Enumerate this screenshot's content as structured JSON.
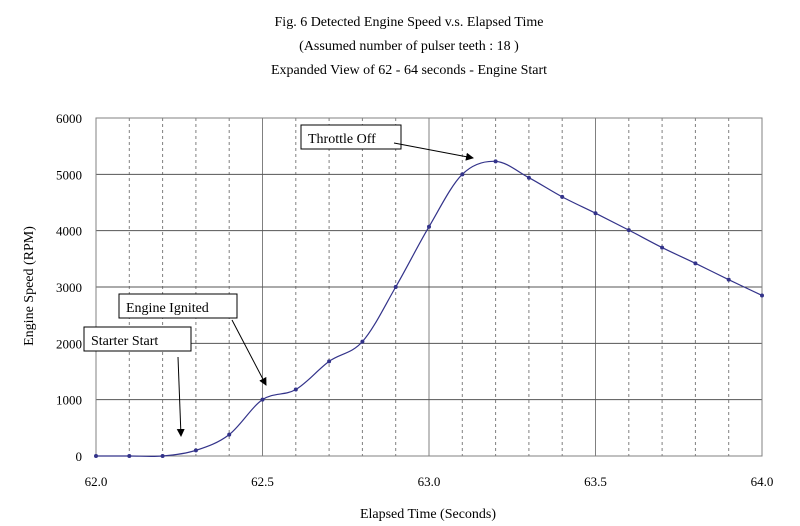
{
  "chart_data": {
    "type": "line",
    "title_lines": [
      "Fig. 6  Detected Engine Speed  v.s. Elapsed Time",
      "(Assumed number of pulser teeth : 18 )",
      "Expanded View of 62 - 64 seconds - Engine Start"
    ],
    "xlabel": "Elapsed Time (Seconds)",
    "ylabel": "Engine Speed (RPM)",
    "xlim": [
      62.0,
      64.0
    ],
    "ylim": [
      0,
      6000
    ],
    "x_ticks": [
      "62.0",
      "62.5",
      "63.0",
      "63.5",
      "64.0"
    ],
    "y_ticks": [
      "0",
      "1000",
      "2000",
      "3000",
      "4000",
      "5000",
      "6000"
    ],
    "grid": {
      "horizontal": true,
      "vertical_minor": true
    },
    "series": [
      {
        "x": [
          62.0,
          62.1,
          62.2,
          62.3,
          62.4,
          62.5,
          62.6,
          62.7,
          62.8,
          62.9,
          63.0,
          63.1,
          63.2,
          63.3,
          63.4,
          63.5,
          63.6,
          63.7,
          63.8,
          63.9,
          64.0
        ],
        "y": [
          0,
          0,
          0,
          100,
          380,
          1000,
          1180,
          1680,
          2030,
          3000,
          4070,
          5000,
          5230,
          4940,
          4600,
          4310,
          4010,
          3700,
          3420,
          3130,
          2850
        ]
      }
    ],
    "annotations": [
      {
        "text": "Throttle Off",
        "at_x": 63.2,
        "at_y": 5230
      },
      {
        "text": "Engine Ignited",
        "at_x": 62.52,
        "at_y": 1080
      },
      {
        "text": "Starter Start",
        "at_x": 62.25,
        "at_y": 300
      }
    ],
    "colors": {
      "line": "#33338a",
      "grid": "#808080",
      "frame": "#808080"
    }
  }
}
